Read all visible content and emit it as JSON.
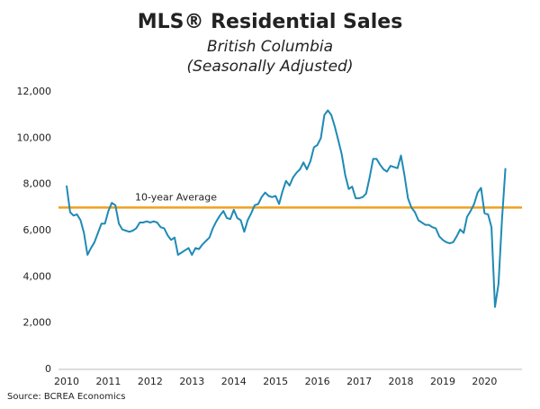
{
  "chart_data": {
    "type": "line",
    "title": "MLS® Residential Sales",
    "subtitle": "British Columbia",
    "subtitle2": "(Seasonally Adjusted)",
    "source": "Source: BCREA Economics",
    "categories": [
      "2010",
      null,
      null,
      null,
      null,
      null,
      null,
      null,
      null,
      null,
      null,
      null,
      "2011",
      null,
      null,
      null,
      null,
      null,
      null,
      null,
      null,
      null,
      null,
      null,
      "2012",
      null,
      null,
      null,
      null,
      null,
      null,
      null,
      null,
      null,
      null,
      null,
      "2013",
      null,
      null,
      null,
      null,
      null,
      null,
      null,
      null,
      null,
      null,
      null,
      "2014",
      null,
      null,
      null,
      null,
      null,
      null,
      null,
      null,
      null,
      null,
      null,
      "2015",
      null,
      null,
      null,
      null,
      null,
      null,
      null,
      null,
      null,
      null,
      null,
      "2016",
      null,
      null,
      null,
      null,
      null,
      null,
      null,
      null,
      null,
      null,
      null,
      "2017",
      null,
      null,
      null,
      null,
      null,
      null,
      null,
      null,
      null,
      null,
      null,
      "2018",
      null,
      null,
      null,
      null,
      null,
      null,
      null,
      null,
      null,
      null,
      null,
      "2019",
      null,
      null,
      null,
      null,
      null,
      null,
      null,
      null,
      null,
      null,
      null,
      "2020",
      null,
      null,
      null,
      null,
      null,
      null
    ],
    "values": [
      7950,
      6800,
      6650,
      6700,
      6450,
      5900,
      4950,
      5250,
      5500,
      5900,
      6300,
      6300,
      6850,
      7200,
      7100,
      6300,
      6050,
      6000,
      5950,
      6000,
      6100,
      6350,
      6350,
      6400,
      6350,
      6400,
      6350,
      6150,
      6100,
      5800,
      5600,
      5700,
      4950,
      5050,
      5150,
      5250,
      4950,
      5250,
      5200,
      5400,
      5550,
      5700,
      6100,
      6400,
      6650,
      6850,
      6550,
      6500,
      6900,
      6550,
      6450,
      5950,
      6450,
      6750,
      7100,
      7150,
      7450,
      7650,
      7500,
      7450,
      7500,
      7150,
      7700,
      8150,
      7950,
      8300,
      8500,
      8650,
      8950,
      8650,
      9000,
      9600,
      9700,
      10000,
      11000,
      11200,
      11000,
      10500,
      9900,
      9300,
      8400,
      7800,
      7900,
      7400,
      7400,
      7450,
      7600,
      8300,
      9100,
      9100,
      8850,
      8650,
      8550,
      8800,
      8750,
      8700,
      9250,
      8400,
      7400,
      7000,
      6800,
      6450,
      6350,
      6250,
      6250,
      6150,
      6100,
      5750,
      5600,
      5500,
      5450,
      5500,
      5750,
      6050,
      5900,
      6600,
      6850,
      7150,
      7650,
      7850,
      6750,
      6700,
      6150,
      2700,
      3700,
      6500,
      8700
    ],
    "color": "#1f8ab5",
    "ylim": [
      0,
      12000
    ],
    "yticks": [
      0,
      {
        "value": 2000,
        "label": "2,000"
      },
      {
        "value": 4000,
        "label": "4,000"
      },
      {
        "value": 6000,
        "label": "6,000"
      },
      {
        "value": 8000,
        "label": "8,000"
      },
      {
        "value": 10000,
        "label": "10,000"
      },
      {
        "value": 12000,
        "label": "12,000"
      }
    ],
    "reference_line": {
      "value": 7000,
      "label": "10-year Average",
      "color": "#f0a020"
    }
  }
}
